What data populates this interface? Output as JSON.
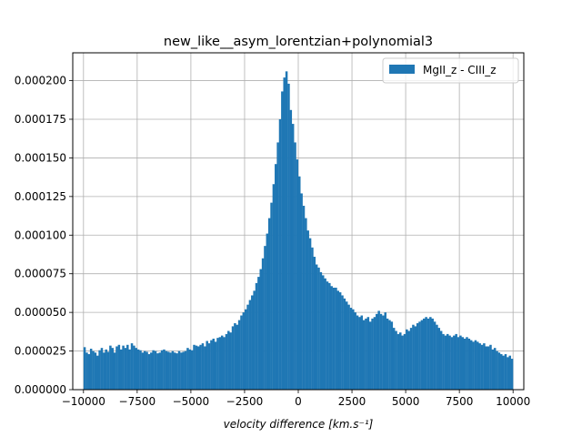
{
  "chart_data": {
    "type": "bar",
    "title": "new_like__asym_lorentzian+polynomial3",
    "xlabel": "velocity difference [km.s⁻¹]",
    "ylabel": "",
    "xlim": [
      -10500,
      10500
    ],
    "ylim": [
      0,
      0.000218
    ],
    "grid": true,
    "legend_position": "top-right",
    "color": "#1f77b4",
    "x_ticks": [
      -10000,
      -7500,
      -5000,
      -2500,
      0,
      2500,
      5000,
      7500,
      10000
    ],
    "x_tick_labels": [
      "−10000",
      "−7500",
      "−5000",
      "−2500",
      "0",
      "2500",
      "5000",
      "7500",
      "10000"
    ],
    "y_ticks": [
      0,
      2.5e-05,
      5e-05,
      7.5e-05,
      0.0001,
      0.000125,
      0.00015,
      0.000175,
      0.0002
    ],
    "y_tick_labels": [
      "0.000000",
      "0.000025",
      "0.000050",
      "0.000075",
      "0.000100",
      "0.000125",
      "0.000150",
      "0.000175",
      "0.000200"
    ],
    "series": [
      {
        "name": "MgII_z - CIII_z",
        "bin_range": [
          -10000,
          10000
        ],
        "bin_width": 100,
        "values": [
          2.75e-05,
          2.4e-05,
          2.3e-05,
          2.65e-05,
          2.5e-05,
          2.4e-05,
          2.2e-05,
          2.55e-05,
          2.7e-05,
          2.4e-05,
          2.6e-05,
          2.45e-05,
          2.85e-05,
          2.7e-05,
          2.4e-05,
          2.8e-05,
          2.9e-05,
          2.6e-05,
          2.85e-05,
          2.7e-05,
          2.9e-05,
          2.6e-05,
          3e-05,
          2.85e-05,
          2.7e-05,
          2.6e-05,
          2.55e-05,
          2.4e-05,
          2.5e-05,
          2.45e-05,
          2.3e-05,
          2.4e-05,
          2.55e-05,
          2.5e-05,
          2.35e-05,
          2.4e-05,
          2.55e-05,
          2.6e-05,
          2.5e-05,
          2.45e-05,
          2.4e-05,
          2.5e-05,
          2.4e-05,
          2.35e-05,
          2.5e-05,
          2.4e-05,
          2.45e-05,
          2.5e-05,
          2.7e-05,
          2.6e-05,
          2.55e-05,
          2.9e-05,
          2.85e-05,
          2.8e-05,
          2.9e-05,
          3e-05,
          2.8e-05,
          3.15e-05,
          3e-05,
          3.2e-05,
          3.3e-05,
          3.1e-05,
          3.35e-05,
          3.4e-05,
          3.5e-05,
          3.4e-05,
          3.6e-05,
          3.8e-05,
          3.7e-05,
          4.1e-05,
          4.3e-05,
          4.2e-05,
          4.5e-05,
          4.8e-05,
          5e-05,
          5.2e-05,
          5.5e-05,
          5.8e-05,
          6.1e-05,
          6.4e-05,
          6.9e-05,
          7.3e-05,
          7.8e-05,
          8.5e-05,
          9.3e-05,
          0.000101,
          0.000111,
          0.000121,
          0.000133,
          0.000146,
          0.00016,
          0.000175,
          0.000193,
          0.000202,
          0.000206,
          0.000198,
          0.000181,
          0.000172,
          0.00016,
          0.000149,
          0.000138,
          0.000127,
          0.000119,
          0.000111,
          0.000103,
          9.8e-05,
          9.2e-05,
          8.6e-05,
          8.1e-05,
          7.9e-05,
          7.6e-05,
          7.4e-05,
          7.2e-05,
          7e-05,
          6.9e-05,
          6.7e-05,
          6.6e-05,
          6.6e-05,
          6.4e-05,
          6.3e-05,
          6.1e-05,
          5.9e-05,
          5.7e-05,
          5.5e-05,
          5.3e-05,
          5.2e-05,
          5e-05,
          4.8e-05,
          4.7e-05,
          4.8e-05,
          4.5e-05,
          4.6e-05,
          4.7e-05,
          4.4e-05,
          4.6e-05,
          4.7e-05,
          4.9e-05,
          5.1e-05,
          4.9e-05,
          4.8e-05,
          5e-05,
          4.6e-05,
          4.5e-05,
          4.4e-05,
          4e-05,
          3.8e-05,
          3.6e-05,
          3.7e-05,
          3.5e-05,
          3.6e-05,
          3.9e-05,
          3.8e-05,
          4e-05,
          4.2e-05,
          4.1e-05,
          4.3e-05,
          4.4e-05,
          4.5e-05,
          4.6e-05,
          4.7e-05,
          4.6e-05,
          4.7e-05,
          4.6e-05,
          4.4e-05,
          4.2e-05,
          4e-05,
          3.8e-05,
          3.6e-05,
          3.5e-05,
          3.6e-05,
          3.5e-05,
          3.4e-05,
          3.5e-05,
          3.6e-05,
          3.4e-05,
          3.5e-05,
          3.4e-05,
          3.3e-05,
          3.4e-05,
          3.3e-05,
          3.2e-05,
          3.1e-05,
          3.2e-05,
          3.1e-05,
          3e-05,
          2.9e-05,
          3e-05,
          2.8e-05,
          2.8e-05,
          2.9e-05,
          2.6e-05,
          2.7e-05,
          2.5e-05,
          2.4e-05,
          2.3e-05,
          2.2e-05,
          2.3e-05,
          2.1e-05,
          2.2e-05,
          2e-05
        ]
      }
    ]
  }
}
